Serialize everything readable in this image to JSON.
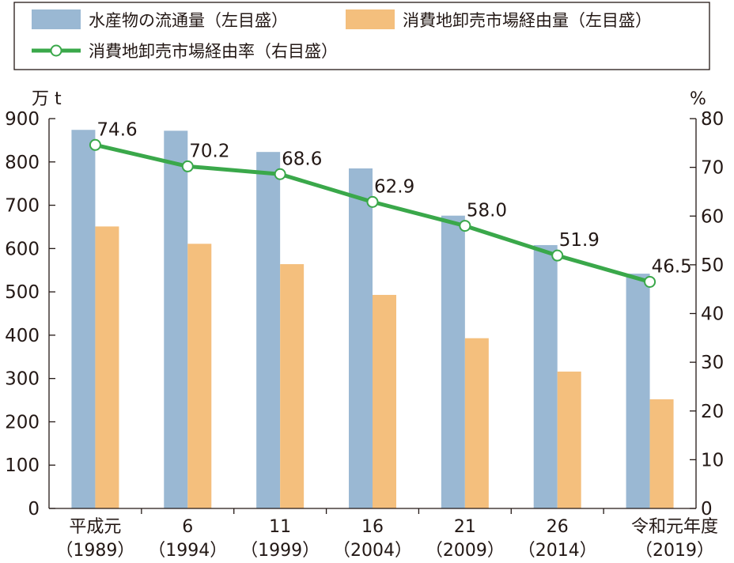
{
  "chart_data": {
    "type": "bar+line",
    "categories": [
      {
        "line1": "平成元",
        "line2": "（1989）"
      },
      {
        "line1": "6",
        "line2": "（1994）"
      },
      {
        "line1": "11",
        "line2": "（1999）"
      },
      {
        "line1": "16",
        "line2": "（2004）"
      },
      {
        "line1": "21",
        "line2": "（2009）"
      },
      {
        "line1": "26",
        "line2": "（2014）"
      },
      {
        "line1": "令和元年度",
        "line2": "（2019）"
      }
    ],
    "series": [
      {
        "name": "水産物の流通量（左目盛）",
        "kind": "bar",
        "axis": "left",
        "color": "#9ab8d3",
        "values": [
          874,
          872,
          823,
          785,
          676,
          608,
          542
        ]
      },
      {
        "name": "消費地卸売市場経由量（左目盛）",
        "kind": "bar",
        "axis": "left",
        "color": "#f4bf7d",
        "values": [
          651,
          611,
          564,
          493,
          393,
          316,
          252
        ]
      },
      {
        "name": "消費地卸売市場経由率（右目盛）",
        "kind": "line",
        "axis": "right",
        "color": "#3aa84a",
        "values": [
          74.6,
          70.2,
          68.6,
          62.9,
          58.0,
          51.9,
          46.5
        ],
        "labels": [
          "74.6",
          "70.2",
          "68.6",
          "62.9",
          "58.0",
          "51.9",
          "46.5"
        ]
      }
    ],
    "y_left": {
      "unit": "万 t",
      "min": 0,
      "max": 900,
      "ticks": [
        "0",
        "100",
        "200",
        "300",
        "400",
        "500",
        "600",
        "700",
        "800",
        "900"
      ]
    },
    "y_right": {
      "unit": "%",
      "min": 0,
      "max": 80,
      "ticks": [
        "0",
        "10",
        "20",
        "30",
        "40",
        "50",
        "60",
        "70",
        "80"
      ]
    },
    "legend": {
      "placement": "top",
      "bordered": true
    },
    "grid": false
  }
}
